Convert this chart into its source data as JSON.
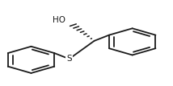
{
  "bg_color": "#ffffff",
  "line_color": "#1a1a1a",
  "line_width": 1.3,
  "font_size_label": 7.5,
  "S_label": "S",
  "HO_label": "HO"
}
